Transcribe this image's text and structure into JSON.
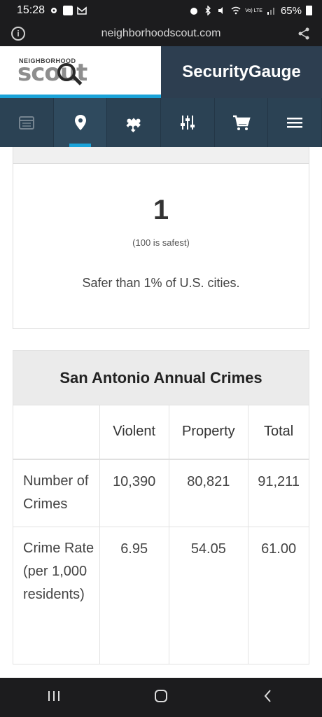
{
  "status_bar": {
    "time": "15:28",
    "battery": "65%",
    "network": "Vo) LTE"
  },
  "browser": {
    "url": "neighborhoodscout.com"
  },
  "header": {
    "logo_top": "NEIGHBORHOOD",
    "logo_main": "scout",
    "product": "SecurityGauge"
  },
  "nav": {
    "items": [
      {
        "icon": "calendar-icon"
      },
      {
        "icon": "location-pin-icon"
      },
      {
        "icon": "puzzle-icon"
      },
      {
        "icon": "sliders-icon"
      },
      {
        "icon": "cart-icon"
      },
      {
        "icon": "menu-icon"
      }
    ]
  },
  "score": {
    "value": "1",
    "note": "(100 is safest)",
    "description": "Safer than 1% of U.S. cities."
  },
  "crimes_table": {
    "title": "San Antonio Annual Crimes",
    "columns": [
      "",
      "Violent",
      "Property",
      "Total"
    ],
    "rows": [
      {
        "label": "Number of Crimes",
        "violent": "10,390",
        "property": "80,821",
        "total": "91,211"
      },
      {
        "label": "Crime Rate (per 1,000 residents)",
        "violent": "6.95",
        "property": "54.05",
        "total": "61.00"
      }
    ]
  },
  "colors": {
    "accent": "#1aa3d9",
    "header_dark": "#2d3e50",
    "nav": "#2b4254"
  }
}
